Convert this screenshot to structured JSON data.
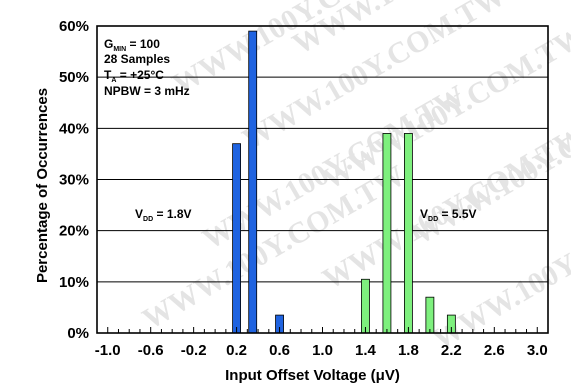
{
  "chart_data": {
    "type": "bar",
    "title": "",
    "xlabel": "Input Offset Voltage (μV)",
    "ylabel": "Percentage of Occurrences",
    "xlim": [
      -1.1,
      3.1
    ],
    "ylim": [
      0,
      60
    ],
    "x_ticks": [
      -1.0,
      -0.6,
      -0.2,
      0.2,
      0.6,
      1.0,
      1.4,
      1.8,
      2.2,
      2.6,
      3.0
    ],
    "x_tick_labels": [
      "-1.0",
      "-0.6",
      "-0.2",
      "0.2",
      "0.6",
      "1.0",
      "1.4",
      "1.8",
      "2.2",
      "2.6",
      "3.0"
    ],
    "y_ticks": [
      0,
      10,
      20,
      30,
      40,
      50,
      60
    ],
    "y_tick_labels": [
      "0%",
      "10%",
      "20%",
      "30%",
      "40%",
      "50%",
      "60%"
    ],
    "grid": "horizontal",
    "series": [
      {
        "label": "VDD = 1.8V",
        "color": "#1f63e0",
        "points": [
          {
            "x": 0.2,
            "y": 37
          },
          {
            "x": 0.35,
            "y": 59
          },
          {
            "x": 0.6,
            "y": 3.5
          }
        ]
      },
      {
        "label": "VDD = 5.5V",
        "color": "#7ef07e",
        "points": [
          {
            "x": 1.4,
            "y": 10.5
          },
          {
            "x": 1.6,
            "y": 39
          },
          {
            "x": 1.8,
            "y": 39
          },
          {
            "x": 2.0,
            "y": 7
          },
          {
            "x": 2.2,
            "y": 3.5
          }
        ]
      }
    ],
    "info_box": {
      "line1_main": "G",
      "line1_sub": "MIN",
      "line1_rest": " = 100",
      "line2": "28 Samples",
      "line3_main": "T",
      "line3_sub": "A",
      "line3_rest": " = +25°C",
      "line4": "NPBW = 3 mHz"
    },
    "annotations": [
      {
        "main": "V",
        "sub": "DD",
        "rest": " = 1.8V",
        "anchor_x": -0.55,
        "anchor_y": 23
      },
      {
        "main": "V",
        "sub": "DD",
        "rest": " = 5.5V",
        "anchor_x": 2.0,
        "anchor_y": 23
      }
    ],
    "watermark": "WWW.100Y.COM.TW"
  }
}
